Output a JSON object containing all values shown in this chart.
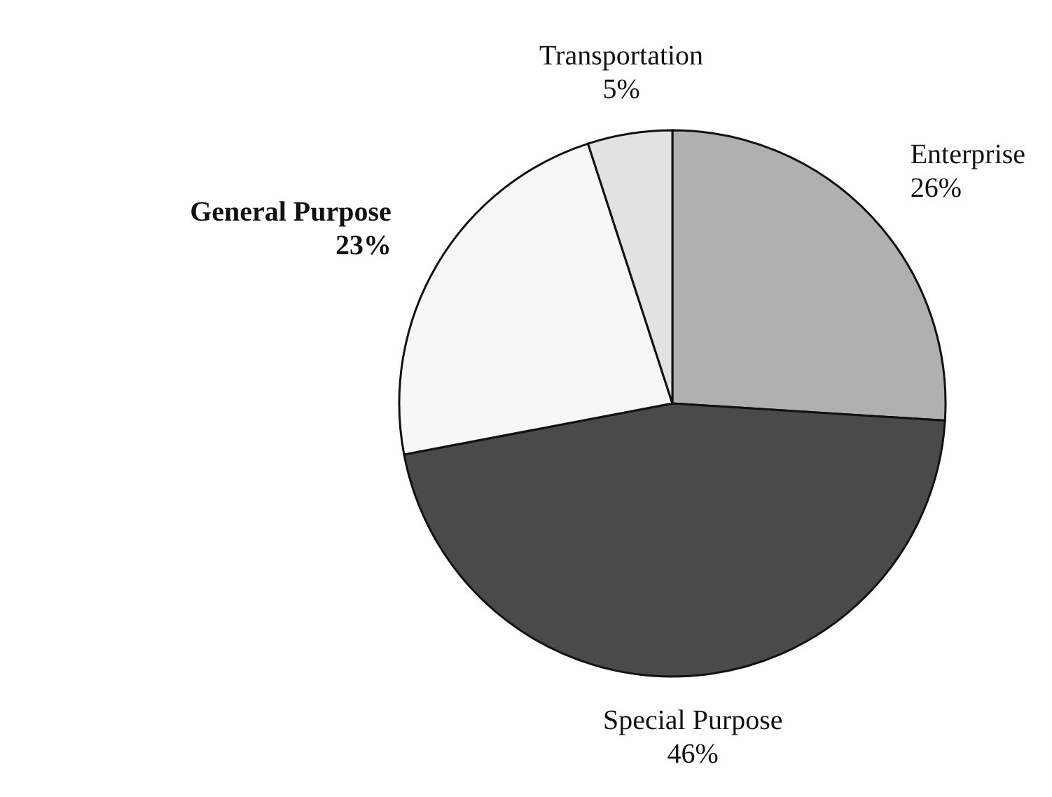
{
  "chart_data": {
    "type": "pie",
    "categories": [
      "Enterprise",
      "Special Purpose",
      "General Purpose",
      "Transportation"
    ],
    "values": [
      26,
      46,
      23,
      5
    ],
    "colors": [
      "#b0b0b0",
      "#4a4a4a",
      "#f7f7f7",
      "#e2e2e2"
    ],
    "value_labels": [
      "26%",
      "46%",
      "23%",
      "5%"
    ]
  }
}
